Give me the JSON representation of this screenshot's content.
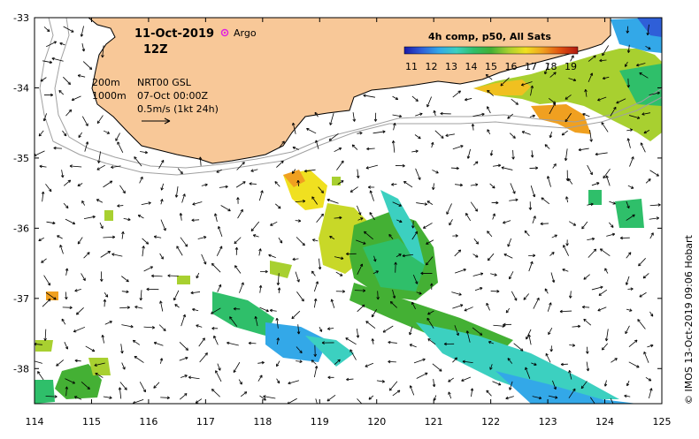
{
  "map": {
    "date": "11-Oct-2019",
    "hour": "12Z",
    "argo_label": "Argo",
    "legend_title": "4h comp, p50, All Sats",
    "colorbar_ticks": [
      "11",
      "12",
      "13",
      "14",
      "15",
      "16",
      "17",
      "18",
      "19"
    ],
    "colorbar_colors": [
      "#1a1aa8",
      "#2f5fd8",
      "#33a8e8",
      "#3cd0c0",
      "#2fbf6a",
      "#44b034",
      "#a8d030",
      "#f0e020",
      "#f0a020",
      "#e05010",
      "#b01810"
    ],
    "depth_label_200": "200m",
    "depth_label_1000": "1000m",
    "current_source": "NRT00 GSL",
    "current_time": "07-Oct 00:00Z",
    "vector_scale": "0.5m/s (1kt 24h)",
    "credit": "© IMOS 13-Oct-2019 09:06 Hobart",
    "lon_ticks": [
      "114",
      "115",
      "116",
      "117",
      "118",
      "119",
      "120",
      "121",
      "122",
      "123",
      "124",
      "125"
    ],
    "lat_ticks": [
      "-33",
      "-34",
      "-35",
      "-36",
      "-37",
      "-38"
    ],
    "colors": {
      "land": "#f8c898",
      "coast": "#000000",
      "bathy": "#a0a0a0",
      "argo": "#e020e0"
    }
  }
}
